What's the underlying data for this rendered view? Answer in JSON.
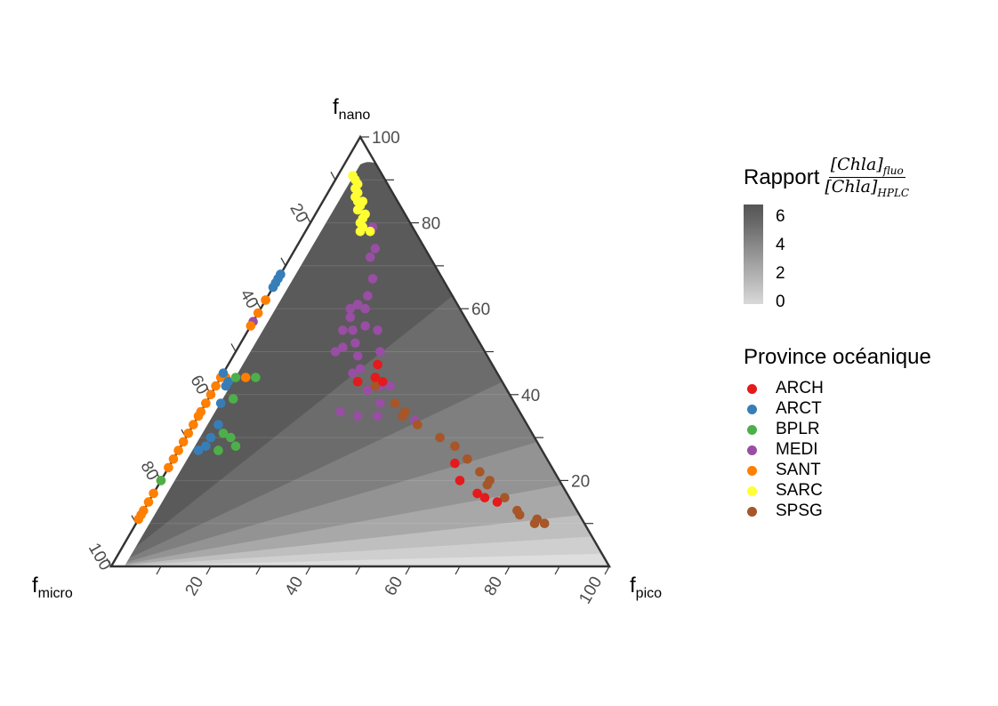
{
  "chart_data": {
    "type": "scatter",
    "subtype": "ternary",
    "axes": {
      "top": {
        "label": "f",
        "sub": "nano"
      },
      "left": {
        "label": "f",
        "sub": "micro"
      },
      "right": {
        "label": "f",
        "sub": "pico"
      }
    },
    "ticks": {
      "right_edge": [
        "20",
        "40",
        "60",
        "80",
        "100"
      ],
      "left_edge": [
        "20",
        "40",
        "60",
        "80",
        "100"
      ],
      "bottom_edge": [
        "20",
        "40",
        "60",
        "80",
        "100"
      ]
    },
    "colorbar": {
      "title_prefix": "Rapport",
      "numerator": "[Chla]",
      "numerator_sub": "fluo",
      "denominator": "[Chla]",
      "denominator_sub": "HPLC",
      "ticks": [
        "6",
        "4",
        "2",
        "0"
      ],
      "range": [
        0,
        7
      ]
    },
    "legend_title": "Province océanique",
    "provinces": [
      {
        "name": "ARCH",
        "color": "#e41a1c"
      },
      {
        "name": "ARCT",
        "color": "#377eb8"
      },
      {
        "name": "BPLR",
        "color": "#4daf4a"
      },
      {
        "name": "MEDI",
        "color": "#984ea3"
      },
      {
        "name": "SANT",
        "color": "#ff7f00"
      },
      {
        "name": "SARC",
        "color": "#ffff33"
      },
      {
        "name": "SPSG",
        "color": "#a65628"
      }
    ],
    "points": {
      "SARC": [
        [
          6,
          91,
          3
        ],
        [
          6,
          90,
          4
        ],
        [
          6,
          89,
          5
        ],
        [
          7,
          88,
          5
        ],
        [
          7,
          87,
          6
        ],
        [
          8,
          86,
          6
        ],
        [
          7,
          85,
          8
        ],
        [
          8,
          84,
          8
        ],
        [
          9,
          83,
          8
        ],
        [
          8,
          82,
          10
        ],
        [
          9,
          81,
          10
        ],
        [
          10,
          80,
          10
        ],
        [
          10,
          79,
          11
        ],
        [
          9,
          78,
          13
        ],
        [
          11,
          78,
          11
        ],
        [
          10,
          79,
          11
        ],
        [
          8,
          85,
          7
        ]
      ],
      "MEDI": [
        [
          7,
          85,
          8
        ],
        [
          12,
          72,
          16
        ],
        [
          8,
          79,
          13
        ],
        [
          10,
          74,
          16
        ],
        [
          14,
          67,
          19
        ],
        [
          17,
          63,
          20
        ],
        [
          19,
          60,
          21
        ],
        [
          22,
          60,
          18
        ],
        [
          20,
          61,
          19
        ],
        [
          23,
          58,
          19
        ],
        [
          21,
          56,
          23
        ],
        [
          24,
          55,
          21
        ],
        [
          26,
          55,
          19
        ],
        [
          19,
          55,
          26
        ],
        [
          25,
          52,
          23
        ],
        [
          28,
          51,
          21
        ],
        [
          21,
          50,
          29
        ],
        [
          26,
          49,
          25
        ],
        [
          30,
          50,
          20
        ],
        [
          27,
          46,
          27
        ],
        [
          29,
          45,
          26
        ],
        [
          23,
          42,
          35
        ],
        [
          28,
          41,
          31
        ],
        [
          27,
          38,
          35
        ],
        [
          22,
          34,
          44
        ],
        [
          29,
          35,
          36
        ],
        [
          33,
          35,
          32
        ],
        [
          36,
          36,
          28
        ],
        [
          25,
          42,
          33
        ],
        [
          55,
          57,
          -12
        ]
      ],
      "SANT": [
        [
          55,
          62,
          -17
        ],
        [
          52,
          62,
          -14
        ],
        [
          54,
          59,
          -13
        ],
        [
          58,
          56,
          -14
        ],
        [
          58,
          44,
          -2
        ],
        [
          55,
          44,
          1
        ],
        [
          51,
          44,
          5
        ],
        [
          64,
          42,
          -6
        ],
        [
          62,
          40,
          -2
        ],
        [
          63,
          38,
          -1
        ],
        [
          66,
          38,
          -4
        ],
        [
          68,
          36,
          -4
        ],
        [
          70,
          35,
          -5
        ],
        [
          72,
          33,
          -5
        ],
        [
          74,
          31,
          -5
        ],
        [
          77,
          29,
          -6
        ],
        [
          79,
          27,
          -6
        ],
        [
          82,
          25,
          -7
        ],
        [
          85,
          23,
          -8
        ],
        [
          88,
          20,
          -8
        ],
        [
          91,
          17,
          -8
        ],
        [
          94,
          15,
          -9
        ],
        [
          96,
          13,
          -9
        ],
        [
          97,
          12,
          -9
        ],
        [
          99,
          11,
          -10
        ]
      ],
      "ARCT": [
        [
          42,
          68,
          -10
        ],
        [
          45,
          68,
          -13
        ],
        [
          42,
          67,
          -9
        ],
        [
          44,
          65,
          -9
        ],
        [
          44,
          66,
          -10
        ],
        [
          55,
          45,
          0
        ],
        [
          55,
          43,
          2
        ],
        [
          56,
          42,
          2
        ],
        [
          59,
          38,
          3
        ],
        [
          62,
          33,
          5
        ],
        [
          65,
          30,
          5
        ],
        [
          67,
          28,
          5
        ],
        [
          69,
          27,
          4
        ]
      ],
      "BPLR": [
        [
          49,
          44,
          7
        ],
        [
          53,
          44,
          3
        ],
        [
          56,
          39,
          5
        ],
        [
          62,
          31,
          7
        ],
        [
          61,
          30,
          9
        ],
        [
          61,
          28,
          11
        ],
        [
          65,
          27,
          8
        ],
        [
          82,
          20,
          -2
        ]
      ],
      "ARCH": [
        [
          25,
          44,
          31
        ],
        [
          23,
          47,
          30
        ],
        [
          24,
          43,
          33
        ],
        [
          29,
          43,
          28
        ],
        [
          19,
          24,
          57
        ],
        [
          20,
          20,
          60
        ],
        [
          15,
          15,
          70
        ],
        [
          17,
          16,
          67
        ],
        [
          18,
          17,
          65
        ]
      ],
      "SPSG": [
        [
          26,
          42,
          32
        ],
        [
          24,
          38,
          38
        ],
        [
          23,
          36,
          41
        ],
        [
          24,
          35,
          41
        ],
        [
          22,
          33,
          45
        ],
        [
          19,
          30,
          51
        ],
        [
          17,
          28,
          55
        ],
        [
          16,
          25,
          59
        ],
        [
          15,
          22,
          63
        ],
        [
          14,
          20,
          66
        ],
        [
          15,
          19,
          66
        ],
        [
          13,
          16,
          71
        ],
        [
          12,
          12,
          76
        ],
        [
          10,
          10,
          80
        ],
        [
          12,
          13,
          75
        ],
        [
          9,
          11,
          80
        ],
        [
          8,
          10,
          82
        ]
      ]
    }
  }
}
